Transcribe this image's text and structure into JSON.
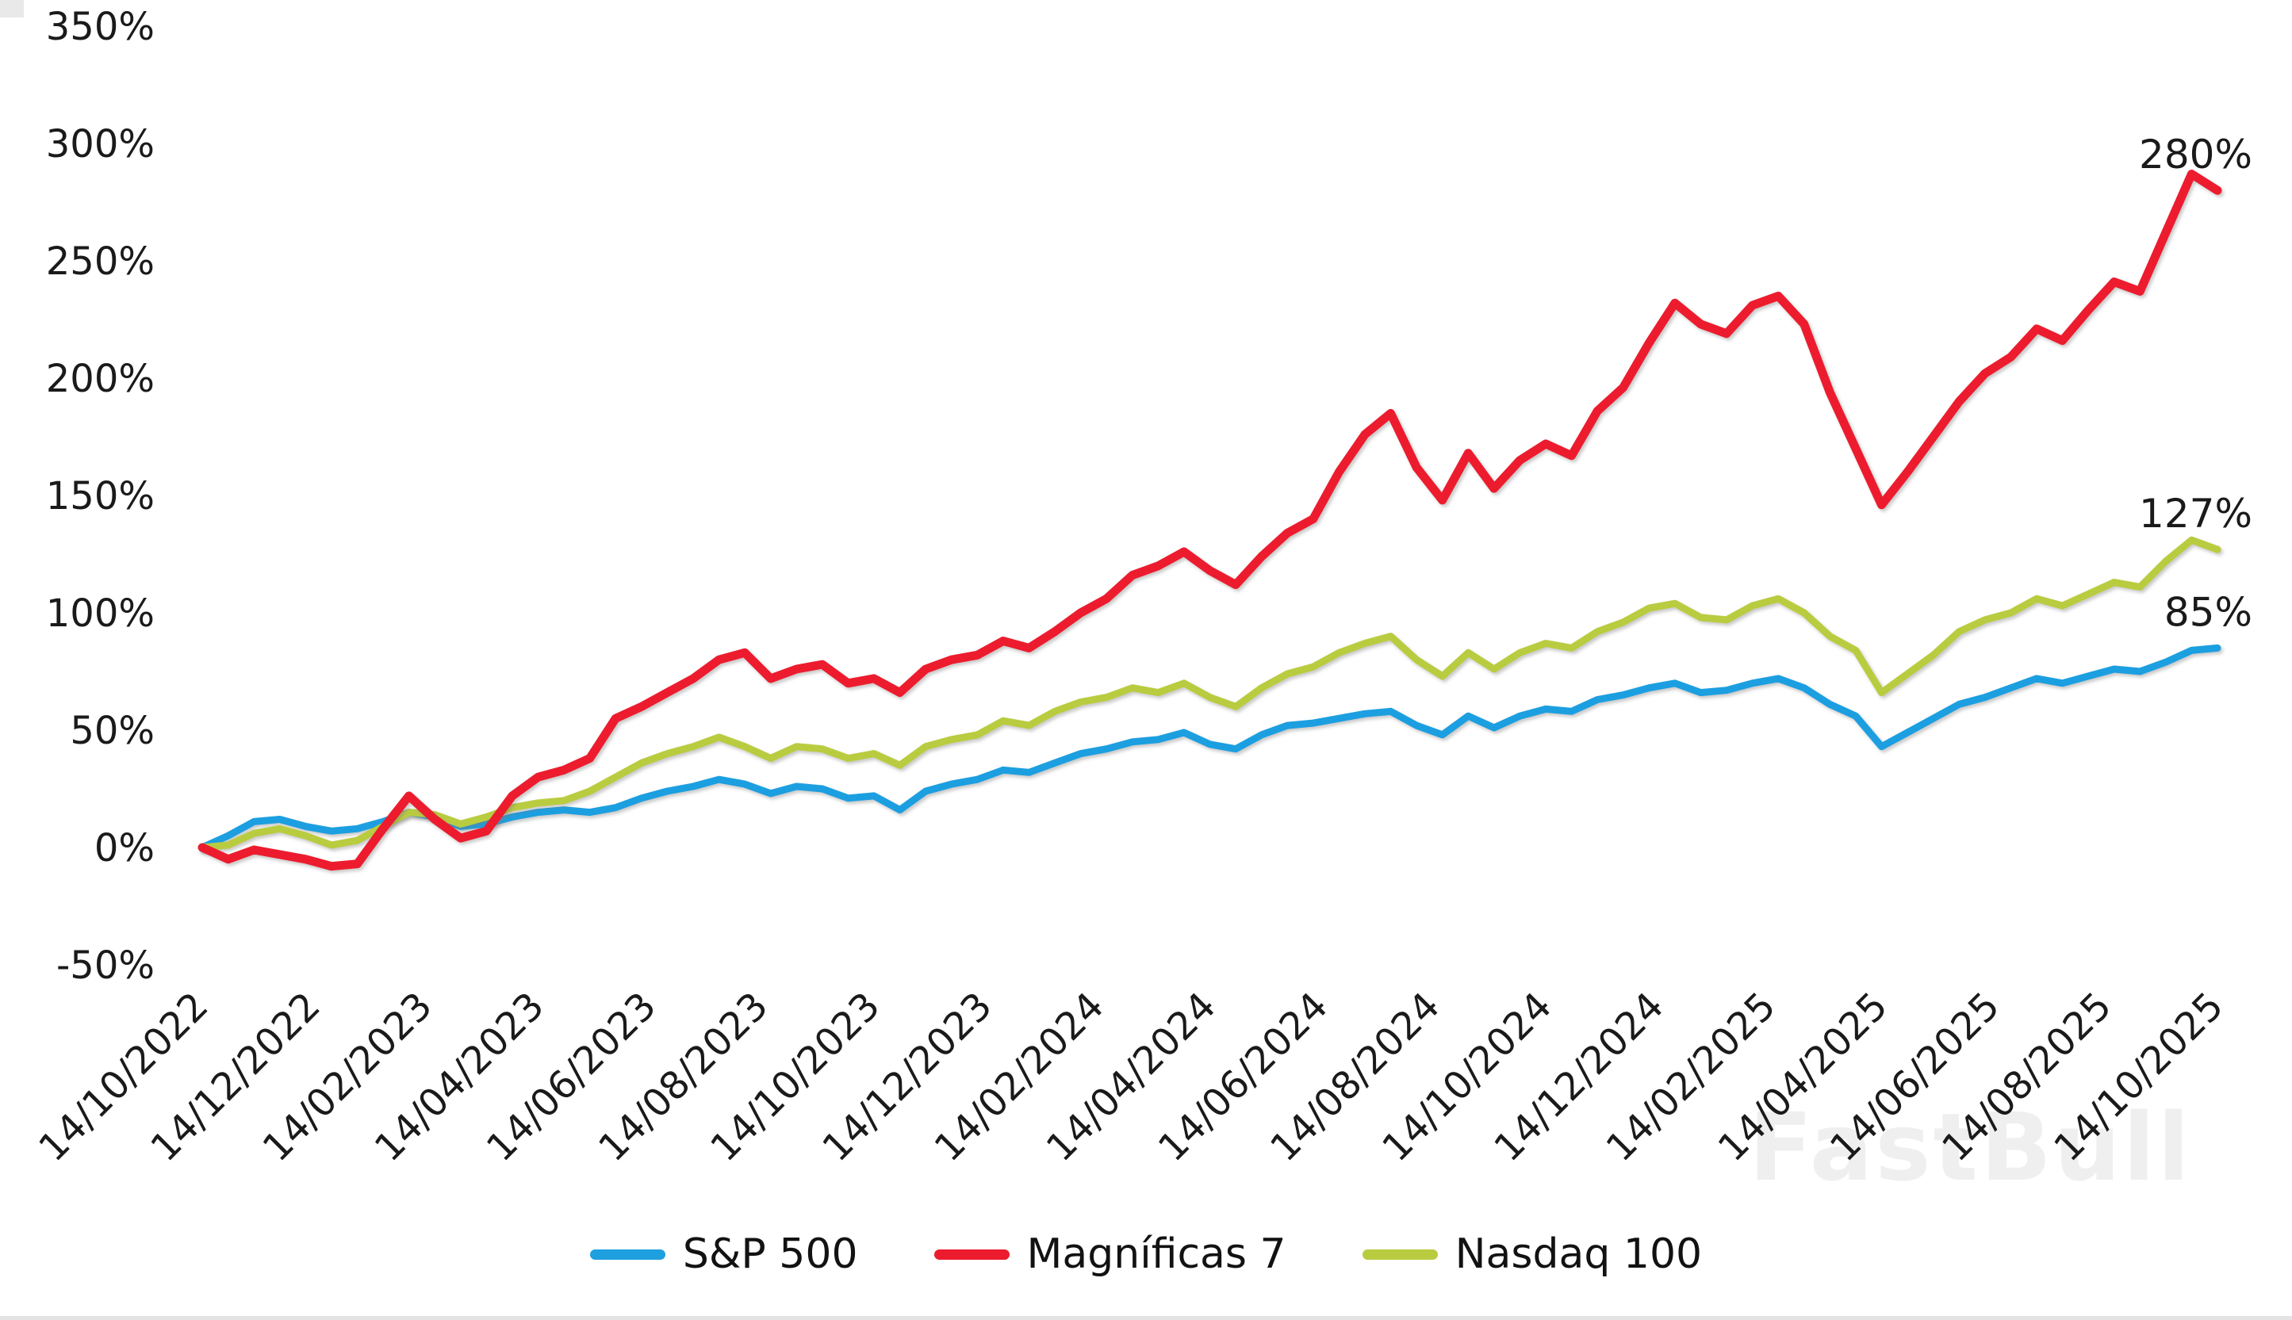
{
  "watermark": "FastBull",
  "colors": {
    "sp500": "#1E9FE0",
    "mag7": "#EC1B2E",
    "nasdaq100": "#B9CC3F",
    "text": "#1A1A1A",
    "watermark_gray": "#EFEFEF"
  },
  "chart_data": {
    "type": "line",
    "title": "",
    "grid": "off",
    "legend_position": "bottom-center",
    "ylim": [
      -50,
      350
    ],
    "y_tick_labels": [
      "350%",
      "300%",
      "250%",
      "200%",
      "150%",
      "100%",
      "50%",
      "0%",
      "-50%"
    ],
    "x_tick_labels": [
      "14/10/2022",
      "14/12/2022",
      "14/02/2023",
      "14/04/2023",
      "14/06/2023",
      "14/08/2023",
      "14/10/2023",
      "14/12/2023",
      "14/02/2024",
      "14/04/2024",
      "14/06/2024",
      "14/08/2024",
      "14/10/2024",
      "14/12/2024",
      "14/02/2025",
      "14/04/2025",
      "14/06/2025",
      "14/08/2025",
      "14/10/2025"
    ],
    "x_start_date": "14/10/2022",
    "x_end_date": "14/10/2025",
    "sample_interval_weeks": 2,
    "series": [
      {
        "name": "S&P 500",
        "color": "#1E9FE0",
        "line_width": 9,
        "end_label": "85%",
        "end_value": 85,
        "values": [
          0,
          5,
          11,
          12,
          9,
          7,
          8,
          11,
          15,
          13,
          9,
          10,
          13,
          15,
          16,
          15,
          17,
          21,
          24,
          26,
          29,
          27,
          23,
          26,
          25,
          21,
          22,
          16,
          24,
          27,
          29,
          33,
          32,
          36,
          40,
          42,
          45,
          46,
          49,
          44,
          42,
          48,
          52,
          53,
          55,
          57,
          58,
          52,
          48,
          56,
          51,
          56,
          59,
          58,
          63,
          65,
          68,
          70,
          66,
          67,
          70,
          72,
          68,
          61,
          56,
          43,
          49,
          55,
          61,
          64,
          68,
          72,
          70,
          73,
          76,
          75,
          79,
          84,
          85
        ]
      },
      {
        "name": "Magníficas 7",
        "color": "#EC1B2E",
        "line_width": 11,
        "end_label": "280%",
        "end_value": 280,
        "values": [
          0,
          -5,
          -1,
          -3,
          -5,
          -8,
          -7,
          8,
          22,
          12,
          4,
          7,
          22,
          30,
          33,
          38,
          55,
          60,
          66,
          72,
          80,
          83,
          72,
          76,
          78,
          70,
          72,
          66,
          76,
          80,
          82,
          88,
          85,
          92,
          100,
          106,
          116,
          120,
          126,
          118,
          112,
          124,
          134,
          140,
          160,
          176,
          185,
          162,
          148,
          168,
          153,
          165,
          172,
          167,
          186,
          196,
          215,
          232,
          223,
          219,
          231,
          235,
          223,
          194,
          170,
          146,
          160,
          175,
          190,
          202,
          209,
          221,
          216,
          229,
          241,
          237,
          262,
          287,
          280
        ]
      },
      {
        "name": "Nasdaq 100",
        "color": "#B9CC3F",
        "line_width": 9,
        "end_label": "127%",
        "end_value": 127,
        "values": [
          0,
          1,
          6,
          8,
          5,
          1,
          3,
          9,
          15,
          14,
          10,
          13,
          17,
          19,
          20,
          24,
          30,
          36,
          40,
          43,
          47,
          43,
          38,
          43,
          42,
          38,
          40,
          35,
          43,
          46,
          48,
          54,
          52,
          58,
          62,
          64,
          68,
          66,
          70,
          64,
          60,
          68,
          74,
          77,
          83,
          87,
          90,
          80,
          73,
          83,
          76,
          83,
          87,
          85,
          92,
          96,
          102,
          104,
          98,
          97,
          103,
          106,
          100,
          90,
          84,
          66,
          74,
          82,
          92,
          97,
          100,
          106,
          103,
          108,
          113,
          111,
          122,
          131,
          127
        ]
      }
    ]
  }
}
